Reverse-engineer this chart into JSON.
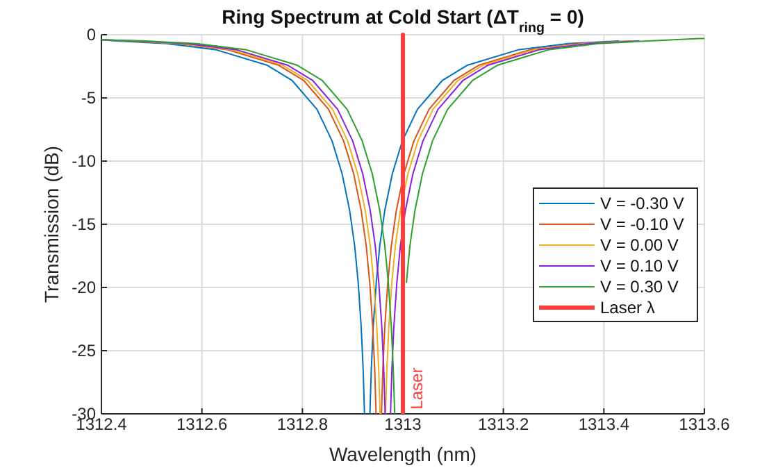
{
  "chart_data": {
    "type": "line",
    "title": "Ring Spectrum at Cold Start (ΔT$_{ring}$ = 0)",
    "xlabel": "Wavelength (nm)",
    "ylabel": "Transmission (dB)",
    "xlim": [
      1312.4,
      1313.6
    ],
    "xticks": [
      1312.4,
      1312.6,
      1312.8,
      1313,
      1313.2,
      1313.4,
      1313.6
    ],
    "ylim": [
      -30,
      0
    ],
    "yticks": [
      -30,
      -25,
      -20,
      -15,
      -10,
      -5,
      0
    ],
    "grid": true,
    "legend": "right",
    "line_style": "solid",
    "marker": "none",
    "annotations": [
      {
        "text": "Laser",
        "x": 1313,
        "y": -28
      }
    ],
    "series": [
      {
        "name": "V = -0.30 V",
        "color": "#0072bd",
        "x": [
          1312.4,
          1312.429,
          1312.529,
          1312.629,
          1312.729,
          1312.779,
          1312.829,
          1312.859,
          1312.879,
          1312.894,
          1312.904,
          1312.911,
          1312.917,
          1312.921,
          1312.9236,
          1312.929,
          1312.9344,
          1312.937,
          1312.941,
          1312.947,
          1312.954,
          1312.964,
          1312.979,
          1312.999,
          1313.029,
          1313.079,
          1313.129,
          1313.229,
          1313.329,
          1313.429
        ],
        "values": [
          -0.4,
          -0.5,
          -0.7,
          -1.2,
          -2.4,
          -3.6,
          -5.9,
          -8.4,
          -11,
          -13.9,
          -16.7,
          -19.6,
          -23.1,
          -26.6,
          -30,
          null,
          -30,
          -26.6,
          -23.1,
          -19.6,
          -16.7,
          -13.9,
          -11,
          -8.4,
          -5.9,
          -3.6,
          -2.4,
          -1.2,
          -0.7,
          -0.5
        ]
      },
      {
        "name": "V = -0.10 V",
        "color": "#d95319",
        "x": [
          1312.4,
          1312.452,
          1312.552,
          1312.652,
          1312.752,
          1312.802,
          1312.852,
          1312.882,
          1312.902,
          1312.917,
          1312.927,
          1312.934,
          1312.94,
          1312.944,
          1312.9466,
          1312.952,
          1312.9574,
          1312.96,
          1312.964,
          1312.97,
          1312.977,
          1312.987,
          1313.002,
          1313.022,
          1313.052,
          1313.102,
          1313.152,
          1313.252,
          1313.352,
          1313.452
        ],
        "values": [
          -0.4,
          -0.5,
          -0.7,
          -1.2,
          -2.4,
          -3.6,
          -5.9,
          -8.4,
          -11,
          -13.9,
          -16.7,
          -19.6,
          -23.1,
          -26.6,
          -30,
          null,
          -30,
          -26.6,
          -23.1,
          -19.6,
          -16.7,
          -13.9,
          -11,
          -8.4,
          -5.9,
          -3.6,
          -2.4,
          -1.2,
          -0.7,
          -0.5
        ]
      },
      {
        "name": "V = 0.00 V",
        "color": "#edb120",
        "x": [
          1312.4,
          1312.46,
          1312.56,
          1312.66,
          1312.76,
          1312.81,
          1312.86,
          1312.89,
          1312.91,
          1312.925,
          1312.935,
          1312.942,
          1312.948,
          1312.952,
          1312.9546,
          1312.96,
          1312.9654,
          1312.968,
          1312.972,
          1312.978,
          1312.985,
          1312.995,
          1313.01,
          1313.03,
          1313.06,
          1313.11,
          1313.16,
          1313.26,
          1313.36,
          1313.46
        ],
        "values": [
          -0.4,
          -0.5,
          -0.7,
          -1.2,
          -2.4,
          -3.6,
          -5.9,
          -8.4,
          -11,
          -13.9,
          -16.7,
          -19.6,
          -23.1,
          -26.6,
          -30,
          null,
          -30,
          -26.6,
          -23.1,
          -19.6,
          -16.7,
          -13.9,
          -11,
          -8.4,
          -5.9,
          -3.6,
          -2.4,
          -1.2,
          -0.7,
          -0.5
        ]
      },
      {
        "name": "V = 0.10 V",
        "color": "#8a1fe0",
        "x": [
          1312.4,
          1312.47,
          1312.57,
          1312.67,
          1312.77,
          1312.82,
          1312.87,
          1312.9,
          1312.92,
          1312.935,
          1312.945,
          1312.952,
          1312.958,
          1312.962,
          1312.9646,
          1312.97,
          1312.9754,
          1312.978,
          1312.982,
          1312.988,
          1312.995,
          1313.005,
          1313.02,
          1313.04,
          1313.07,
          1313.12,
          1313.17,
          1313.27,
          1313.37,
          1313.47
        ],
        "values": [
          -0.4,
          -0.5,
          -0.7,
          -1.2,
          -2.4,
          -3.6,
          -5.9,
          -8.4,
          -11,
          -13.9,
          -16.7,
          -19.6,
          -23.1,
          -26.6,
          -30,
          null,
          -30,
          -26.6,
          -23.1,
          -19.6,
          -16.7,
          -13.9,
          -11,
          -8.4,
          -5.9,
          -3.6,
          -2.4,
          -1.2,
          -0.7,
          -0.5
        ]
      },
      {
        "name": "V = 0.30 V",
        "color": "#2ca02c",
        "x": [
          1312.4,
          1312.489,
          1312.589,
          1312.689,
          1312.789,
          1312.839,
          1312.889,
          1312.919,
          1312.939,
          1312.954,
          1312.964,
          1312.971,
          1312.977,
          1312.981,
          1312.9836,
          1312.989,
          1312.9944,
          1312.997,
          1313.001,
          1313.007,
          1313.014,
          1313.024,
          1313.039,
          1313.059,
          1313.089,
          1313.139,
          1313.189,
          1313.289,
          1313.389,
          1313.489,
          1313.589,
          1313.6
        ],
        "values": [
          -0.4,
          -0.5,
          -0.7,
          -1.2,
          -2.4,
          -3.6,
          -5.9,
          -8.4,
          -11,
          -13.9,
          -16.7,
          -19.6,
          -23.1,
          -26.6,
          -30,
          null,
          null,
          null,
          null,
          -19.6,
          -16.7,
          -13.9,
          -11,
          -8.4,
          -5.9,
          -3.6,
          -2.4,
          -1.2,
          -0.7,
          -0.5,
          -0.3,
          -0.3
        ]
      },
      {
        "name": "Laser λ",
        "color": "#ff3b3b",
        "x": [
          1313,
          1313
        ],
        "values": [
          0,
          -30
        ]
      }
    ]
  }
}
